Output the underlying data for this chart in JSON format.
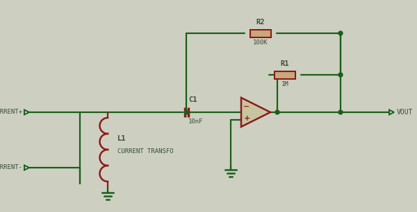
{
  "bg_color": "#cdd0c0",
  "wire_color": "#1a5e1a",
  "component_color": "#8b1a1a",
  "label_color": "#3a4a3a",
  "figsize": [
    6.0,
    3.06
  ],
  "dpi": 100,
  "R2_label": "R2",
  "R2_value": "100K",
  "R1_label": "R1",
  "R1_value": "1M",
  "C1_label": "C1",
  "C1_value": "10nF",
  "L1_label": "L1",
  "L1_value": "CURRENT TRANSFO",
  "port_current_plus": "CURRENT+",
  "port_current_minus": "CURRENT-",
  "port_vout": "VOUT"
}
